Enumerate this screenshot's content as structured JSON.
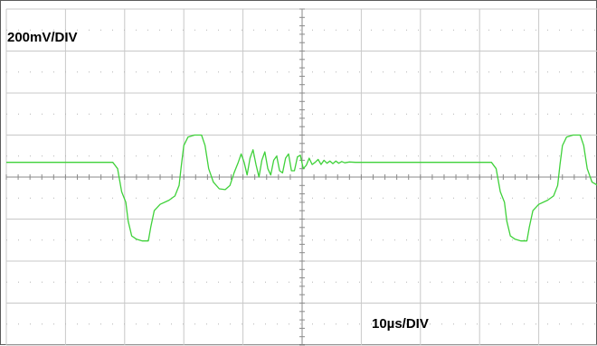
{
  "labels": {
    "volts_per_div": "200mV/DIV",
    "time_per_div": "10µs/DIV"
  },
  "colors": {
    "trace": "#3fd13a",
    "grid": "#c8c8c8",
    "dots": "#b4b4b4",
    "center_axis": "#8a8a8a",
    "frame": "#5b5b5b"
  },
  "chart_data": {
    "type": "line",
    "title": "",
    "xlabel": "",
    "ylabel": "",
    "x_units": "divisions",
    "y_units": "divisions (0 = center)",
    "xlim": [
      0,
      10
    ],
    "ylim": [
      -4,
      4
    ],
    "grid": true,
    "scale": {
      "vertical": "200mV/DIV",
      "horizontal": "10µs/DIV"
    },
    "series": [
      {
        "points": [
          [
            0.0,
            0.35
          ],
          [
            1.8,
            0.35
          ],
          [
            1.88,
            0.2
          ],
          [
            1.95,
            -0.35
          ],
          [
            2.02,
            -0.6
          ],
          [
            2.06,
            -1.05
          ],
          [
            2.12,
            -1.4
          ],
          [
            2.2,
            -1.48
          ],
          [
            2.3,
            -1.52
          ],
          [
            2.4,
            -1.52
          ],
          [
            2.44,
            -1.2
          ],
          [
            2.5,
            -0.8
          ],
          [
            2.6,
            -0.65
          ],
          [
            2.75,
            -0.55
          ],
          [
            2.85,
            -0.45
          ],
          [
            2.92,
            -0.2
          ],
          [
            2.96,
            0.3
          ],
          [
            3.0,
            0.75
          ],
          [
            3.07,
            0.95
          ],
          [
            3.18,
            1.0
          ],
          [
            3.3,
            1.0
          ],
          [
            3.36,
            0.75
          ],
          [
            3.42,
            0.2
          ],
          [
            3.5,
            -0.12
          ],
          [
            3.6,
            -0.28
          ],
          [
            3.7,
            -0.3
          ],
          [
            3.78,
            -0.2
          ],
          [
            3.85,
            0.1
          ],
          [
            3.92,
            0.35
          ],
          [
            3.97,
            0.55
          ],
          [
            4.02,
            0.35
          ],
          [
            4.07,
            0.05
          ],
          [
            4.12,
            0.45
          ],
          [
            4.17,
            0.65
          ],
          [
            4.22,
            0.3
          ],
          [
            4.27,
            0.0
          ],
          [
            4.32,
            0.4
          ],
          [
            4.37,
            0.6
          ],
          [
            4.42,
            0.2
          ],
          [
            4.47,
            0.05
          ],
          [
            4.52,
            0.4
          ],
          [
            4.57,
            0.5
          ],
          [
            4.62,
            0.15
          ],
          [
            4.67,
            0.1
          ],
          [
            4.72,
            0.45
          ],
          [
            4.77,
            0.55
          ],
          [
            4.82,
            0.15
          ],
          [
            4.87,
            0.15
          ],
          [
            4.92,
            0.48
          ],
          [
            4.97,
            0.52
          ],
          [
            5.02,
            0.2
          ],
          [
            5.07,
            0.28
          ],
          [
            5.12,
            0.45
          ],
          [
            5.17,
            0.3
          ],
          [
            5.22,
            0.35
          ],
          [
            5.27,
            0.42
          ],
          [
            5.32,
            0.3
          ],
          [
            5.37,
            0.4
          ],
          [
            5.42,
            0.33
          ],
          [
            5.47,
            0.38
          ],
          [
            5.52,
            0.32
          ],
          [
            5.57,
            0.38
          ],
          [
            5.62,
            0.33
          ],
          [
            5.67,
            0.37
          ],
          [
            5.72,
            0.34
          ],
          [
            5.8,
            0.36
          ],
          [
            5.9,
            0.35
          ],
          [
            8.2,
            0.35
          ],
          [
            8.28,
            0.2
          ],
          [
            8.35,
            -0.35
          ],
          [
            8.42,
            -0.6
          ],
          [
            8.46,
            -1.05
          ],
          [
            8.52,
            -1.4
          ],
          [
            8.6,
            -1.48
          ],
          [
            8.7,
            -1.52
          ],
          [
            8.8,
            -1.52
          ],
          [
            8.84,
            -1.2
          ],
          [
            8.9,
            -0.8
          ],
          [
            9.0,
            -0.65
          ],
          [
            9.15,
            -0.55
          ],
          [
            9.25,
            -0.45
          ],
          [
            9.32,
            -0.2
          ],
          [
            9.36,
            0.3
          ],
          [
            9.4,
            0.75
          ],
          [
            9.47,
            0.95
          ],
          [
            9.58,
            1.0
          ],
          [
            9.7,
            1.0
          ],
          [
            9.76,
            0.75
          ],
          [
            9.82,
            0.2
          ],
          [
            9.9,
            -0.12
          ],
          [
            10.0,
            -0.2
          ]
        ]
      }
    ]
  }
}
